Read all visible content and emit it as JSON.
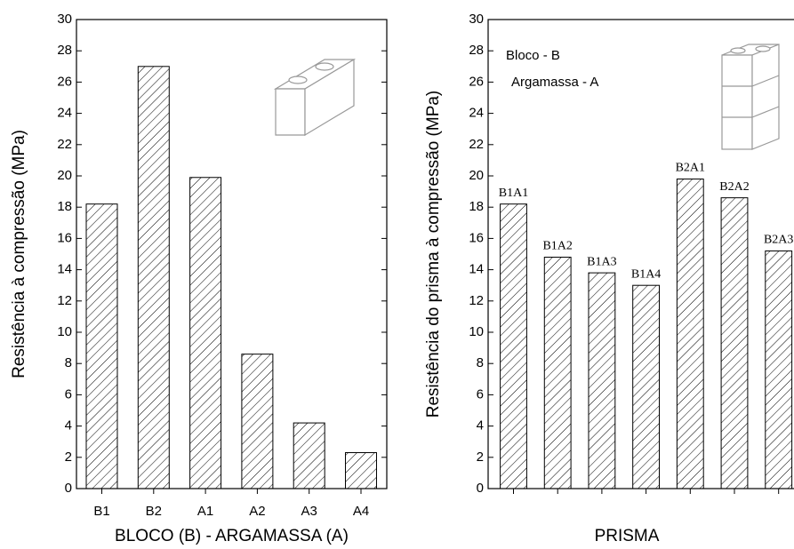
{
  "chart_data": [
    {
      "type": "bar",
      "y_label": "Resistência à compressão (MPa)",
      "x_label": "BLOCO (B) - ARGAMASSA (A)",
      "categories": [
        "B1",
        "B2",
        "A1",
        "A2",
        "A3",
        "A4"
      ],
      "values": [
        18.2,
        27.0,
        19.9,
        8.6,
        4.2,
        2.3
      ],
      "color": "#000000",
      "ylim": [
        0,
        30
      ],
      "yticks": [
        0,
        2,
        4,
        6,
        8,
        10,
        12,
        14,
        16,
        18,
        20,
        22,
        24,
        26,
        28,
        30
      ]
    },
    {
      "type": "bar",
      "y_label": "Resistência do prisma à compressão (MPa)",
      "x_label": "PRISMA",
      "annotations": [
        "Bloco - B",
        "Argamassa - A"
      ],
      "categories": [
        "B1A1",
        "B1A2",
        "B1A3",
        "B1A4",
        "B2A1",
        "B2A2",
        "B2A3"
      ],
      "values": [
        18.2,
        14.8,
        13.8,
        13.0,
        19.8,
        18.6,
        15.2
      ],
      "color": "#000000",
      "ylim": [
        0,
        30
      ],
      "yticks": [
        0,
        2,
        4,
        6,
        8,
        10,
        12,
        14,
        16,
        18,
        20,
        22,
        24,
        26,
        28,
        30
      ]
    }
  ]
}
